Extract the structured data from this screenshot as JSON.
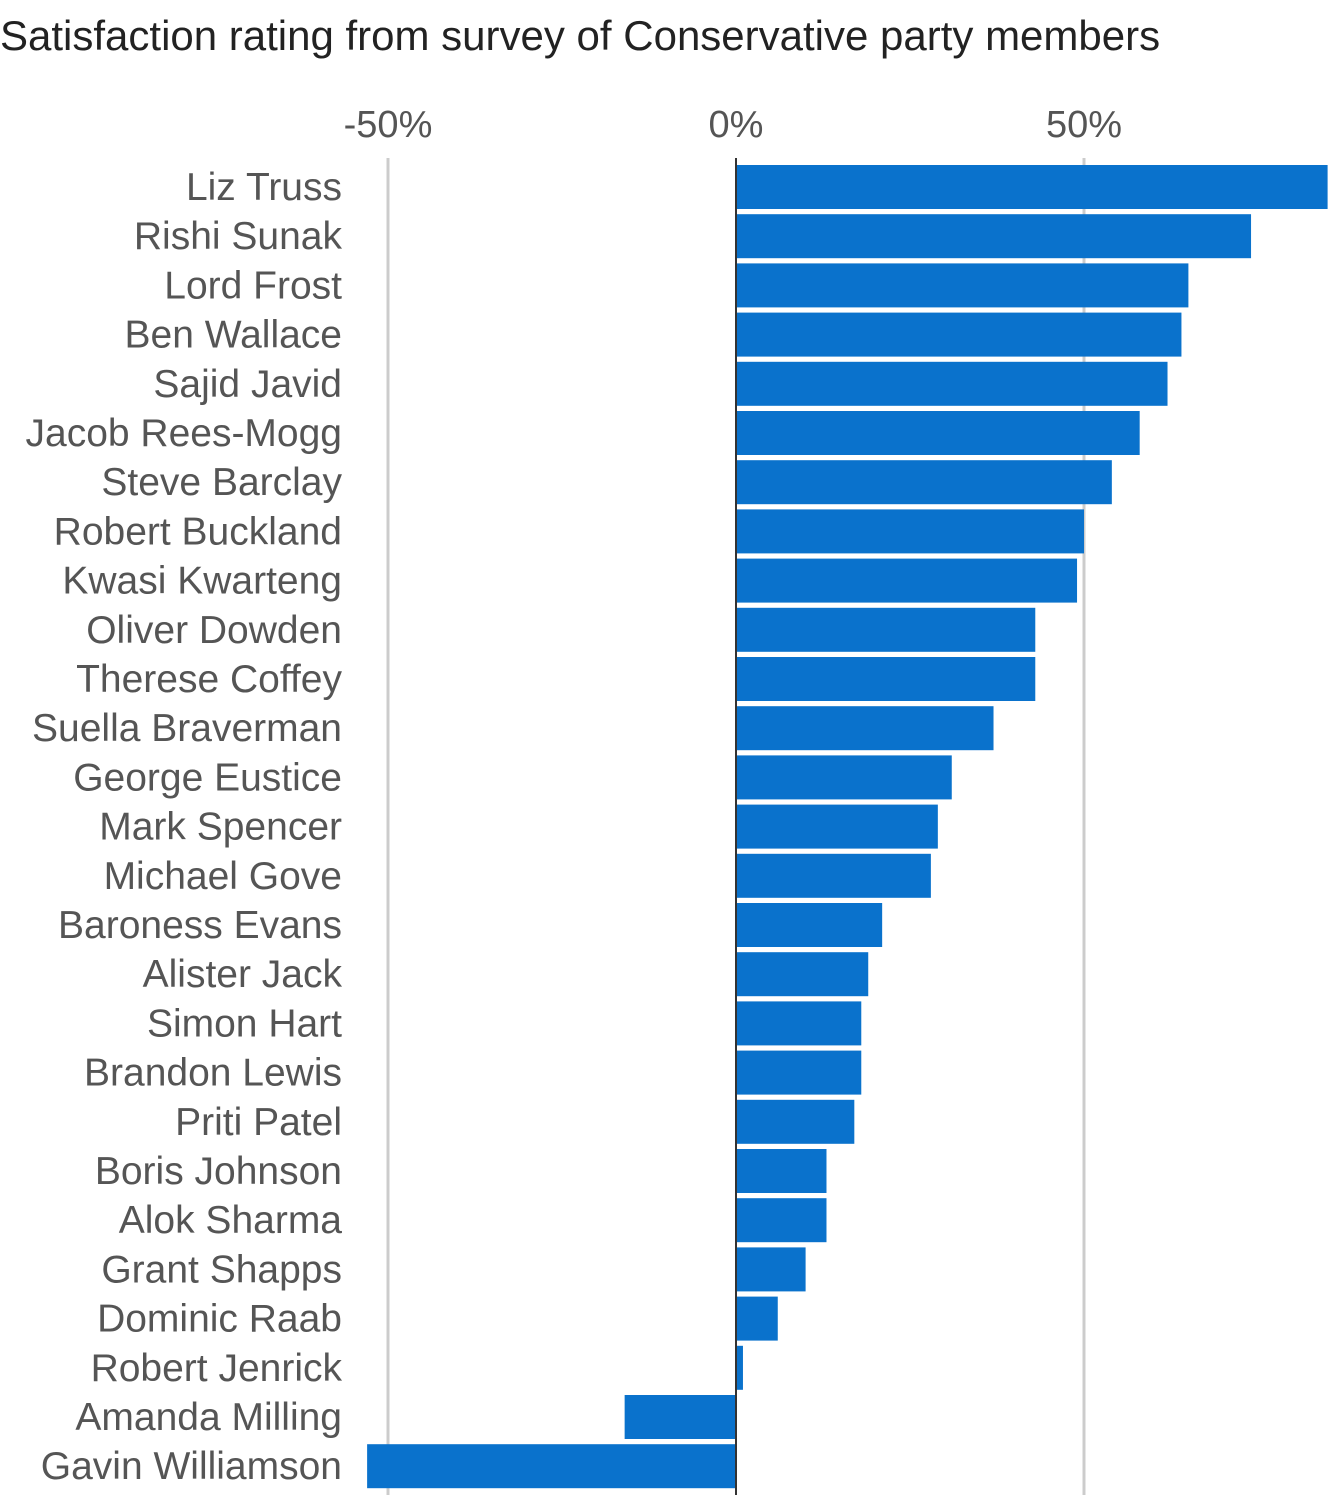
{
  "chart_data": {
    "type": "bar",
    "orientation": "horizontal",
    "title": "Satisfaction rating from survey of Conservative party members",
    "xlabel": "",
    "ylabel": "",
    "x_ticks": [
      -50,
      0,
      50
    ],
    "x_tick_labels": [
      "-50%",
      "0%",
      "50%"
    ],
    "xlim": [
      -53,
      85
    ],
    "grid": true,
    "legend": "none",
    "bar_color": "#0a72cc",
    "categories": [
      "Liz Truss",
      "Rishi Sunak",
      "Lord Frost",
      "Ben Wallace",
      "Sajid Javid",
      "Jacob Rees-Mogg",
      "Steve Barclay",
      "Robert Buckland",
      "Kwasi Kwarteng",
      "Oliver Dowden",
      "Therese Coffey",
      "Suella Braverman",
      "George Eustice",
      "Mark Spencer",
      "Michael Gove",
      "Baroness Evans",
      "Alister Jack",
      "Simon Hart",
      "Brandon Lewis",
      "Priti Patel",
      "Boris Johnson",
      "Alok Sharma",
      "Grant Shapps",
      "Dominic Raab",
      "Robert Jenrick",
      "Amanda Milling",
      "Gavin Williamson"
    ],
    "values": [
      85,
      74,
      65,
      64,
      62,
      58,
      54,
      50,
      49,
      43,
      43,
      37,
      31,
      29,
      28,
      21,
      19,
      18,
      18,
      17,
      13,
      13,
      10,
      6,
      1,
      -16,
      -53
    ]
  }
}
